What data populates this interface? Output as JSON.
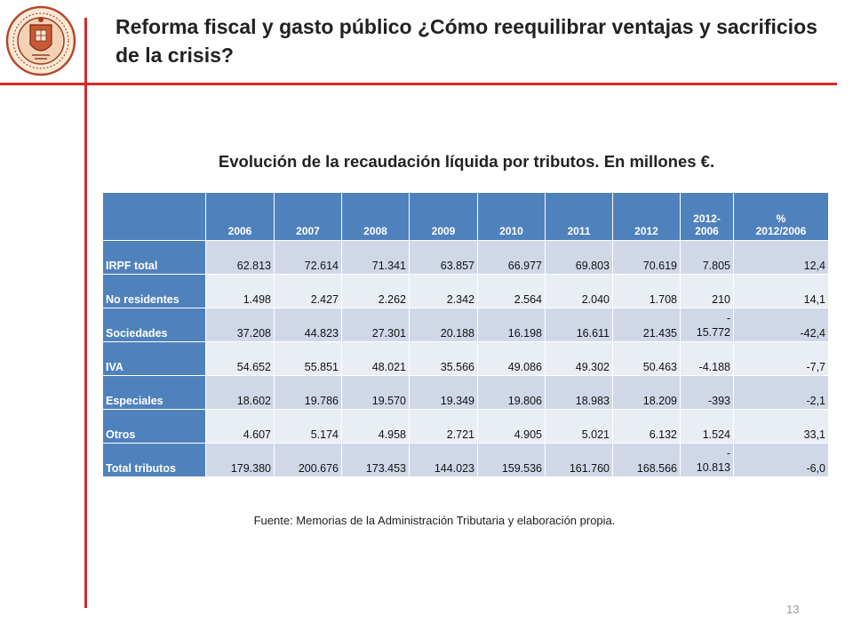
{
  "slide": {
    "title": "Reforma fiscal y gasto público ¿Cómo reequilibrar ventajas y sacrificios de la crisis?",
    "subtitle": "Evolución de la recaudación líquida por tributos. En millones €.",
    "source": "Fuente: Memorias de la Administración Tributaria y elaboración propia.",
    "page_number": "13",
    "colors": {
      "accent_line": "#d42a24",
      "header_fill": "#4f81bd",
      "row_fill_a": "#d0d8e8",
      "row_fill_b": "#e9edf4"
    },
    "logo_icon": "university-seal-icon"
  },
  "table": {
    "headers": [
      "",
      "2006",
      "2007",
      "2008",
      "2009",
      "2010",
      "2011",
      "2012",
      "2012-\n2006",
      "%\n2012/2006"
    ],
    "rows": [
      {
        "label": "IRPF total",
        "cells": [
          "62.813",
          "72.614",
          "71.341",
          "63.857",
          "66.977",
          "69.803",
          "70.619",
          "7.805",
          "12,4"
        ]
      },
      {
        "label": "No residentes",
        "cells": [
          "1.498",
          "2.427",
          "2.262",
          "2.342",
          "2.564",
          "2.040",
          "1.708",
          "210",
          "14,1"
        ]
      },
      {
        "label": "Sociedades",
        "cells": [
          "37.208",
          "44.823",
          "27.301",
          "20.188",
          "16.198",
          "16.611",
          "21.435",
          "-\n15.772",
          "-42,4"
        ]
      },
      {
        "label": "IVA",
        "cells": [
          "54.652",
          "55.851",
          "48.021",
          "35.566",
          "49.086",
          "49.302",
          "50.463",
          "-4.188",
          "-7,7"
        ]
      },
      {
        "label": "Especiales",
        "cells": [
          "18.602",
          "19.786",
          "19.570",
          "19.349",
          "19.806",
          "18.983",
          "18.209",
          "-393",
          "-2,1"
        ]
      },
      {
        "label": "Otros",
        "cells": [
          "4.607",
          "5.174",
          "4.958",
          "2.721",
          "4.905",
          "5.021",
          "6.132",
          "1.524",
          "33,1"
        ]
      },
      {
        "label": "Total tributos",
        "cells": [
          "179.380",
          "200.676",
          "173.453",
          "144.023",
          "159.536",
          "161.760",
          "168.566",
          "-\n10.813",
          "-6,0"
        ]
      }
    ]
  }
}
